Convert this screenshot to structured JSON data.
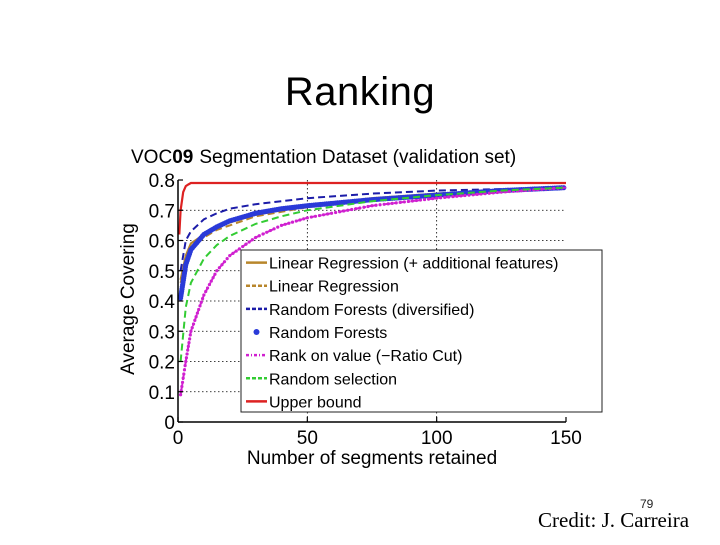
{
  "slide": {
    "title": "Ranking",
    "page_number": "79",
    "credit": "Credit: J. Carreira"
  },
  "chart_data": {
    "type": "line",
    "title": "VOC09 Segmentation Dataset (validation set)",
    "title_prefix": "VOC",
    "title_suffix": "09",
    "title_rest": "Segmentation Dataset (validation set)",
    "xlabel": "Number of segments retained",
    "ylabel": "Average Covering",
    "xlim": [
      0,
      150
    ],
    "ylim": [
      0,
      0.8
    ],
    "xticks": [
      "0",
      "50",
      "100",
      "150"
    ],
    "xtick_values": [
      0,
      50,
      100,
      150
    ],
    "yticks": [
      "0",
      "0.1",
      "0.2",
      "0.3",
      "0.4",
      "0.5",
      "0.6",
      "0.7",
      "0.8"
    ],
    "ytick_values": [
      0,
      0.1,
      0.2,
      0.3,
      0.4,
      0.5,
      0.6,
      0.7,
      0.8
    ],
    "grid": true,
    "legend_position": "lower-right",
    "series": [
      {
        "name": "Linear Regression (+ additional features)",
        "color": "#b8862b",
        "style": "solid",
        "x": [
          1,
          3,
          5,
          10,
          15,
          20,
          30,
          40,
          50,
          75,
          100,
          125,
          150
        ],
        "y": [
          0.47,
          0.55,
          0.59,
          0.62,
          0.645,
          0.66,
          0.685,
          0.7,
          0.715,
          0.74,
          0.755,
          0.765,
          0.775
        ]
      },
      {
        "name": "Linear Regression",
        "color": "#b8862b",
        "style": "dashed",
        "x": [
          1,
          3,
          5,
          10,
          15,
          20,
          30,
          40,
          50,
          75,
          100,
          125,
          150
        ],
        "y": [
          0.46,
          0.53,
          0.57,
          0.61,
          0.635,
          0.65,
          0.68,
          0.695,
          0.71,
          0.735,
          0.75,
          0.765,
          0.775
        ]
      },
      {
        "name": "Random Forests (diversified)",
        "color": "#1c1ca8",
        "style": "dashed",
        "x": [
          1,
          3,
          5,
          10,
          15,
          20,
          30,
          40,
          50,
          75,
          100,
          125,
          150
        ],
        "y": [
          0.5,
          0.6,
          0.63,
          0.67,
          0.69,
          0.705,
          0.72,
          0.73,
          0.74,
          0.755,
          0.765,
          0.77,
          0.775
        ]
      },
      {
        "name": "Random Forests",
        "color": "#2a3ad8",
        "style": "dots",
        "x": [
          1,
          3,
          5,
          10,
          15,
          20,
          30,
          40,
          50,
          75,
          100,
          125,
          150
        ],
        "y": [
          0.41,
          0.52,
          0.57,
          0.62,
          0.645,
          0.665,
          0.69,
          0.705,
          0.715,
          0.735,
          0.75,
          0.765,
          0.775
        ]
      },
      {
        "name": "Rank on value (−Ratio Cut)",
        "color": "#d020d0",
        "style": "dashdot",
        "x": [
          1,
          3,
          5,
          10,
          15,
          20,
          30,
          40,
          50,
          75,
          100,
          125,
          150
        ],
        "y": [
          0.09,
          0.2,
          0.3,
          0.42,
          0.5,
          0.55,
          0.61,
          0.65,
          0.675,
          0.715,
          0.74,
          0.76,
          0.775
        ]
      },
      {
        "name": "Random selection",
        "color": "#33cc33",
        "style": "dashed",
        "x": [
          1,
          3,
          5,
          10,
          15,
          20,
          30,
          40,
          50,
          75,
          100,
          125,
          150
        ],
        "y": [
          0.2,
          0.38,
          0.46,
          0.54,
          0.585,
          0.615,
          0.655,
          0.68,
          0.7,
          0.73,
          0.75,
          0.765,
          0.775
        ]
      },
      {
        "name": "Upper bound",
        "color": "#dd2222",
        "style": "solid",
        "x": [
          0.5,
          1,
          2,
          3,
          4,
          5,
          10,
          20,
          50,
          100,
          150
        ],
        "y": [
          0.62,
          0.7,
          0.76,
          0.78,
          0.785,
          0.79,
          0.79,
          0.79,
          0.79,
          0.79,
          0.79
        ]
      }
    ]
  }
}
